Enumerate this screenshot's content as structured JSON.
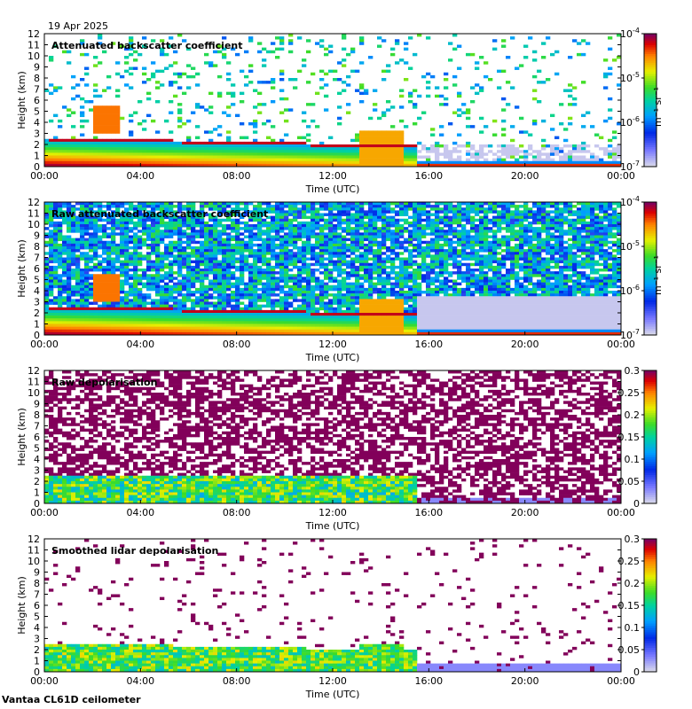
{
  "date": "19 Apr 2025",
  "footer": "Vantaa CL61D ceilometer",
  "chart_data": [
    {
      "type": "heatmap",
      "title": "Attenuated backscatter coefficient",
      "xlabel": "Time (UTC)",
      "ylabel": "Height (km)",
      "x_ticks": [
        "00:00",
        "04:00",
        "08:00",
        "12:00",
        "16:00",
        "20:00",
        "00:00"
      ],
      "y_ticks": [
        "0",
        "1",
        "2",
        "3",
        "4",
        "5",
        "6",
        "7",
        "8",
        "9",
        "10",
        "11",
        "12"
      ],
      "ylim": [
        0,
        12
      ],
      "colorbar": {
        "scale": "log",
        "range": [
          1e-07,
          0.0001
        ],
        "ticks": [
          "10-7",
          "10-6",
          "10-5",
          "10-4"
        ],
        "unit": "m-1 sr-1"
      },
      "noise": "low"
    },
    {
      "type": "heatmap",
      "title": "Raw attenuated backscatter coefficient",
      "xlabel": "Time (UTC)",
      "ylabel": "Height (km)",
      "x_ticks": [
        "00:00",
        "04:00",
        "08:00",
        "12:00",
        "16:00",
        "20:00",
        "00:00"
      ],
      "y_ticks": [
        "0",
        "1",
        "2",
        "3",
        "4",
        "5",
        "6",
        "7",
        "8",
        "9",
        "10",
        "11",
        "12"
      ],
      "ylim": [
        0,
        12
      ],
      "colorbar": {
        "scale": "log",
        "range": [
          1e-07,
          0.0001
        ],
        "ticks": [
          "10-7",
          "10-6",
          "10-5",
          "10-4"
        ],
        "unit": "m-1 sr-1"
      },
      "noise": "high"
    },
    {
      "type": "heatmap",
      "title": "Raw depolarisation",
      "xlabel": "Time (UTC)",
      "ylabel": "Height (km)",
      "x_ticks": [
        "00:00",
        "04:00",
        "08:00",
        "12:00",
        "16:00",
        "20:00",
        "00:00"
      ],
      "y_ticks": [
        "0",
        "1",
        "2",
        "3",
        "4",
        "5",
        "6",
        "7",
        "8",
        "9",
        "10",
        "11",
        "12"
      ],
      "ylim": [
        0,
        12
      ],
      "colorbar": {
        "scale": "linear",
        "range": [
          0,
          0.3
        ],
        "ticks": [
          "0",
          "0.05",
          "0.1",
          "0.15",
          "0.2",
          "0.25",
          "0.3"
        ],
        "unit": ""
      },
      "noise": "depol-high"
    },
    {
      "type": "heatmap",
      "title": "Smoothed lidar depolarisation",
      "xlabel": "Time (UTC)",
      "ylabel": "Height (km)",
      "x_ticks": [
        "00:00",
        "04:00",
        "08:00",
        "12:00",
        "16:00",
        "20:00",
        "00:00"
      ],
      "y_ticks": [
        "0",
        "1",
        "2",
        "3",
        "4",
        "5",
        "6",
        "7",
        "8",
        "9",
        "10",
        "11",
        "12"
      ],
      "ylim": [
        0,
        12
      ],
      "colorbar": {
        "scale": "linear",
        "range": [
          0,
          0.3
        ],
        "ticks": [
          "0",
          "0.05",
          "0.1",
          "0.15",
          "0.2",
          "0.25",
          "0.3"
        ],
        "unit": ""
      },
      "noise": "depol-low"
    }
  ]
}
